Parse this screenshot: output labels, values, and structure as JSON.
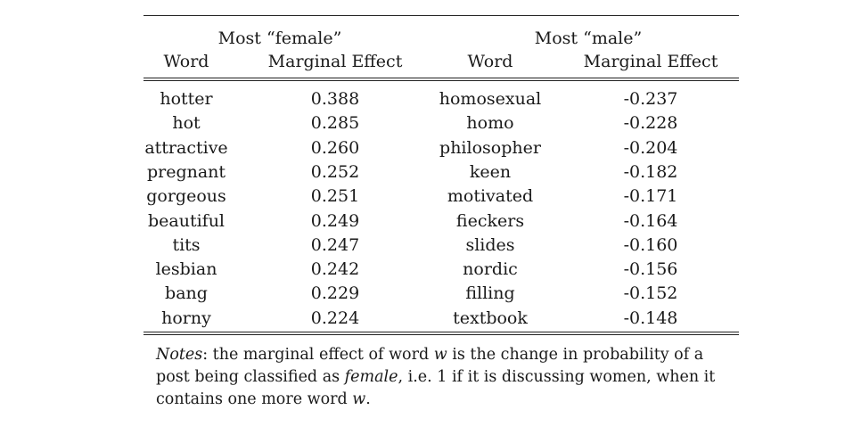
{
  "table": {
    "group_headers": [
      "Most “female”",
      "Most “male”"
    ],
    "col_headers": [
      "Word",
      "Marginal Effect",
      "Word",
      "Marginal Effect"
    ],
    "rows": [
      [
        "hotter",
        "0.388",
        "homosexual",
        "-0.237"
      ],
      [
        "hot",
        "0.285",
        "homo",
        "-0.228"
      ],
      [
        "attractive",
        "0.260",
        "philosopher",
        "-0.204"
      ],
      [
        "pregnant",
        "0.252",
        "keen",
        "-0.182"
      ],
      [
        "gorgeous",
        "0.251",
        "motivated",
        "-0.171"
      ],
      [
        "beautiful",
        "0.249",
        "fieckers",
        "-0.164"
      ],
      [
        "tits",
        "0.247",
        "slides",
        "-0.160"
      ],
      [
        "lesbian",
        "0.242",
        "nordic",
        "-0.156"
      ],
      [
        "bang",
        "0.229",
        "filling",
        "-0.152"
      ],
      [
        "horny",
        "0.224",
        "textbook",
        "-0.148"
      ]
    ]
  },
  "notes": {
    "label": "Notes",
    "text_1": ": the marginal effect of word ",
    "var_w": "w",
    "text_2": " is the change in probability of a post being classified as ",
    "female_word": "female",
    "text_3": ", i.e. 1 if it is discussing women, when it contains one more word ",
    "text_4": "."
  }
}
